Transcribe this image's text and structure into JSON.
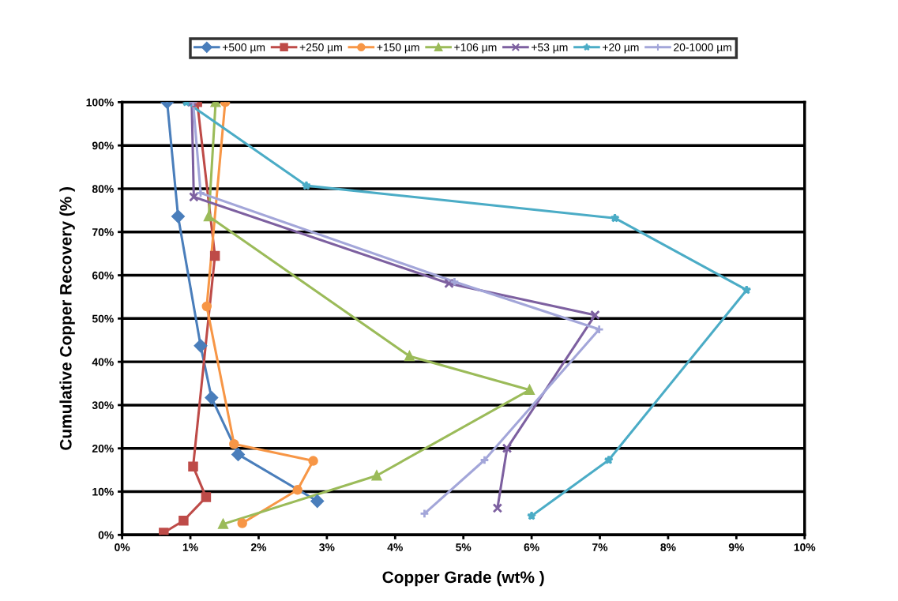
{
  "chart_data": {
    "type": "line",
    "xlabel": "Copper Grade (wt% )",
    "ylabel": "Cumulative Copper Recovery (% )",
    "legend": "top",
    "grid": "y",
    "xlim": [
      0,
      10
    ],
    "ylim": [
      0,
      100
    ],
    "xticks": [
      {
        "value": 0,
        "label": "0%"
      },
      {
        "value": 1,
        "label": "1%"
      },
      {
        "value": 2,
        "label": "2%"
      },
      {
        "value": 3,
        "label": "3%"
      },
      {
        "value": 4,
        "label": "4%"
      },
      {
        "value": 5,
        "label": "5%"
      },
      {
        "value": 6,
        "label": "6%"
      },
      {
        "value": 7,
        "label": "7%"
      },
      {
        "value": 8,
        "label": "8%"
      },
      {
        "value": 9,
        "label": "9%"
      },
      {
        "value": 10,
        "label": "10%"
      }
    ],
    "yticks": [
      {
        "value": 0,
        "label": "0%"
      },
      {
        "value": 10,
        "label": "10%"
      },
      {
        "value": 20,
        "label": "20%"
      },
      {
        "value": 30,
        "label": "30%"
      },
      {
        "value": 40,
        "label": "40%"
      },
      {
        "value": 50,
        "label": "50%"
      },
      {
        "value": 60,
        "label": "60%"
      },
      {
        "value": 70,
        "label": "70%"
      },
      {
        "value": 80,
        "label": "80%"
      },
      {
        "value": 90,
        "label": "90%"
      },
      {
        "value": 100,
        "label": "100%"
      }
    ],
    "series": [
      {
        "name": "+500 µm",
        "color": "#4a7ebb",
        "marker": "diamond",
        "x": [
          0.66,
          0.82,
          1.15,
          1.31,
          1.7,
          2.86
        ],
        "values": [
          100,
          73.6,
          43.7,
          31.7,
          18.6,
          7.8
        ]
      },
      {
        "name": "+250 µm",
        "color": "#be4b48",
        "marker": "square",
        "x": [
          1.1,
          1.36,
          1.04,
          1.23,
          0.9,
          0.61
        ],
        "values": [
          100,
          64.5,
          15.8,
          8.7,
          3.3,
          0.5
        ]
      },
      {
        "name": "+150 µm",
        "color": "#f79646",
        "marker": "circle",
        "x": [
          1.51,
          1.24,
          1.64,
          2.8,
          2.57,
          1.76
        ],
        "values": [
          100,
          52.8,
          21,
          17.1,
          10.4,
          2.7
        ]
      },
      {
        "name": "+106 µm",
        "color": "#9bbb59",
        "marker": "triangle",
        "x": [
          1.37,
          1.27,
          4.21,
          5.97,
          3.73,
          1.48
        ],
        "values": [
          100,
          73.6,
          41.3,
          33.5,
          13.7,
          2.5
        ]
      },
      {
        "name": "+53 µm",
        "color": "#7d60a0",
        "marker": "cross",
        "x": [
          1.02,
          1.05,
          4.79,
          6.93,
          5.64,
          5.5
        ],
        "values": [
          100,
          78.1,
          58.1,
          50.8,
          20,
          6.2
        ]
      },
      {
        "name": "+20 µm",
        "color": "#4bacc6",
        "marker": "star",
        "x": [
          0.94,
          2.7,
          7.22,
          9.15,
          7.13,
          6.0
        ],
        "values": [
          100,
          80.7,
          73.2,
          56.6,
          17.3,
          4.4
        ]
      },
      {
        "name": "20-1000 µm",
        "color": "#a3a6d9",
        "marker": "plus",
        "x": [
          1.04,
          1.15,
          4.87,
          6.99,
          5.31,
          4.43
        ],
        "values": [
          100,
          79,
          58.5,
          47.5,
          17.3,
          4.9
        ]
      }
    ]
  }
}
